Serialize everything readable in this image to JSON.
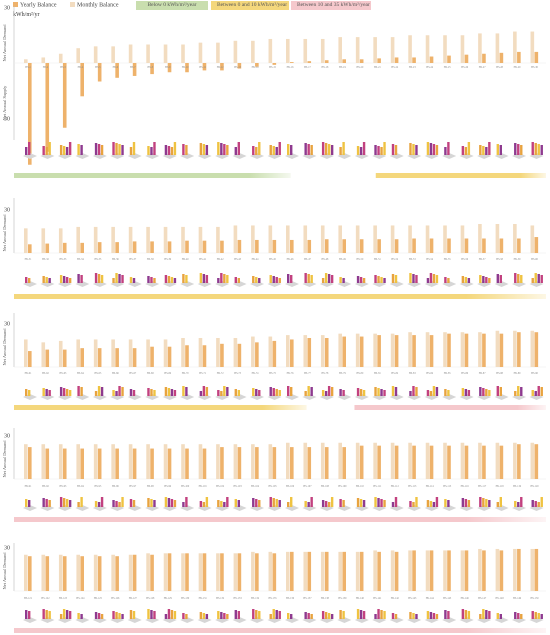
{
  "legend": {
    "yearly": "Yearly Balance",
    "monthly": "Monthly Balance",
    "band_green": "Below 0 kWh/m²/year",
    "band_yellow": "Between 0 and 10 kWh/m²/year",
    "band_pink": "Between 10 and 35 kWh/m²/year"
  },
  "unit": "kWh/m²/yr",
  "colors": {
    "yearly": "#eeb26b",
    "monthly": "#f2dcc0",
    "green": "#c9deae",
    "yellow": "#f4d77c",
    "pink": "#f5c8cc",
    "axis": "#bbbbbb",
    "grid": "#eeeeee",
    "block_purple": "#8e3a8f",
    "block_magenta": "#c2417f",
    "block_orange": "#e8a33f",
    "block_yellow": "#efc341",
    "base": "#d6d6d6"
  },
  "chart_data": [
    {
      "type": "bar",
      "title": "",
      "ylabel_top": "Net Annual Demand",
      "ylabel_bottom": "Net Annual Supply",
      "yticks": [
        30,
        30
      ],
      "ylim": [
        -60,
        30
      ],
      "categories": [
        "HS-1",
        "HS-2",
        "HS-3",
        "HS-4",
        "HS-5",
        "HS-6",
        "HS-7",
        "HS-8",
        "HS-9",
        "HS-10",
        "HS-11",
        "HS-12",
        "HS-13",
        "HS-14",
        "HS-15",
        "HS-16",
        "HS-17",
        "HS-18",
        "HS-19",
        "HS-20",
        "HS-21",
        "HS-22",
        "HS-23",
        "HS-24",
        "HS-25",
        "HS-26",
        "HS-27",
        "HS-28",
        "HS-29",
        "HS-30"
      ],
      "series": [
        {
          "name": "Yearly Balance",
          "values": [
            -55,
            -48,
            -35,
            -18,
            -10,
            -8,
            -7,
            -6,
            -5,
            -5,
            -4,
            -4,
            -3,
            -2,
            -1,
            0.5,
            1,
            1.5,
            2,
            2,
            2.5,
            3,
            3,
            3.5,
            4,
            4.5,
            5,
            5.5,
            6,
            6
          ]
        },
        {
          "name": "Monthly Balance",
          "values": [
            2,
            3,
            5,
            8,
            9,
            9,
            10,
            10,
            10,
            10,
            11,
            11,
            12,
            12,
            13,
            13,
            13,
            13,
            14,
            14,
            14,
            14,
            15,
            15,
            15,
            15,
            16,
            16,
            17,
            17
          ]
        }
      ],
      "bands": [
        {
          "color": "green",
          "from": 0,
          "to": 0.52
        },
        {
          "color": "yellow",
          "from": 0.68,
          "to": 1.0
        }
      ]
    },
    {
      "type": "bar",
      "title": "",
      "ylabel_top": "Net Annual Demand",
      "yticks": [
        30
      ],
      "ylim": [
        0,
        35
      ],
      "categories": [
        "HS-31",
        "HS-32",
        "HS-33",
        "HS-34",
        "HS-35",
        "HS-36",
        "HS-37",
        "HS-38",
        "HS-39",
        "HS-40",
        "HS-41",
        "HS-42",
        "HS-43",
        "HS-44",
        "HS-45",
        "HS-46",
        "HS-47",
        "HS-48",
        "HS-49",
        "HS-50",
        "HS-51",
        "HS-52",
        "HS-53",
        "HS-54",
        "HS-55",
        "HS-56",
        "HS-57",
        "HS-58",
        "HS-59",
        "HS-60"
      ],
      "series": [
        {
          "name": "Yearly Balance",
          "values": [
            6,
            6.5,
            7,
            7,
            7.5,
            7.5,
            8,
            8,
            8,
            8.5,
            8.5,
            8.5,
            9,
            9,
            9,
            9,
            9,
            9.5,
            9.5,
            9.5,
            9.5,
            9.5,
            10,
            10,
            10,
            10,
            10,
            10,
            10,
            11
          ]
        },
        {
          "name": "Monthly Balance",
          "values": [
            17,
            17,
            17,
            18,
            18,
            18,
            18,
            18,
            18,
            18,
            18,
            18,
            19,
            19,
            19,
            19,
            19,
            19,
            19,
            19,
            19,
            19,
            19,
            19,
            19,
            19,
            20,
            20,
            20,
            19
          ]
        }
      ],
      "bands": [
        {
          "color": "yellow",
          "from": 0,
          "to": 1.0
        }
      ]
    },
    {
      "type": "bar",
      "title": "",
      "ylabel_top": "Net Annual Demand",
      "yticks": [
        30
      ],
      "ylim": [
        0,
        35
      ],
      "categories": [
        "HS-61",
        "HS-62",
        "HS-63",
        "HS-64",
        "HS-65",
        "HS-66",
        "HS-67",
        "HS-68",
        "HS-69",
        "HS-70",
        "HS-71",
        "HS-72",
        "HS-73",
        "HS-74",
        "HS-75",
        "HS-76",
        "HS-77",
        "HS-78",
        "HS-79",
        "HS-80",
        "HS-81",
        "HS-82",
        "HS-83",
        "HS-84",
        "HS-85",
        "HS-86",
        "HS-87",
        "HS-88",
        "HS-89",
        "HS-90"
      ],
      "series": [
        {
          "name": "Yearly Balance",
          "values": [
            11,
            12,
            12,
            13,
            13,
            13,
            13,
            14,
            14,
            15,
            15,
            16,
            16,
            17,
            18,
            19,
            20,
            20,
            21,
            21,
            22,
            22,
            22,
            22,
            23,
            23,
            23,
            23,
            24,
            24
          ]
        },
        {
          "name": "Monthly Balance",
          "values": [
            19,
            17,
            18,
            19,
            19,
            19,
            19,
            19,
            19,
            20,
            20,
            20,
            20,
            21,
            21,
            22,
            22,
            22,
            23,
            23,
            23,
            23,
            24,
            24,
            24,
            24,
            24,
            25,
            25,
            25
          ]
        }
      ],
      "bands": [
        {
          "color": "yellow",
          "from": 0,
          "to": 0.55
        },
        {
          "color": "pink",
          "from": 0.64,
          "to": 1.0
        }
      ]
    },
    {
      "type": "bar",
      "title": "",
      "ylabel_top": "Net Annual Demand",
      "yticks": [
        30
      ],
      "ylim": [
        0,
        35
      ],
      "categories": [
        "HS-91",
        "HS-92",
        "HS-93",
        "HS-94",
        "HS-95",
        "HS-96",
        "HS-97",
        "HS-98",
        "HS-99",
        "HS-100",
        "HS-101",
        "HS-102",
        "HS-103",
        "HS-104",
        "HS-105",
        "HS-106",
        "HS-107",
        "HS-108",
        "HS-109",
        "HS-110",
        "HS-111",
        "HS-112",
        "HS-113",
        "HS-114",
        "HS-115",
        "HS-116",
        "HS-117",
        "HS-118",
        "HS-119",
        "HS-120"
      ],
      "series": [
        {
          "name": "Yearly Balance",
          "values": [
            22,
            21,
            21,
            21,
            21,
            21,
            21,
            21,
            21,
            21,
            21,
            22,
            22,
            22,
            22,
            22,
            22,
            22,
            22,
            23,
            23,
            23,
            23,
            23,
            23,
            23,
            23,
            23,
            24,
            24
          ]
        },
        {
          "name": "Monthly Balance",
          "values": [
            24,
            24,
            24,
            24,
            24,
            24,
            24,
            24,
            24,
            24,
            24,
            24,
            24,
            24,
            24,
            25,
            25,
            25,
            25,
            25,
            25,
            25,
            25,
            25,
            25,
            25,
            25,
            25,
            25,
            25
          ]
        }
      ],
      "bands": [
        {
          "color": "pink",
          "from": 0,
          "to": 1.0
        }
      ]
    },
    {
      "type": "bar",
      "title": "",
      "ylabel_top": "Net Annual Demand",
      "yticks": [
        30
      ],
      "ylim": [
        0,
        35
      ],
      "categories": [
        "HS-121",
        "HS-122",
        "HS-123",
        "HS-124",
        "HS-125",
        "HS-126",
        "HS-127",
        "HS-128",
        "HS-129",
        "HS-130",
        "HS-131",
        "HS-132",
        "HS-133",
        "HS-134",
        "HS-135",
        "HS-136",
        "HS-137",
        "HS-138",
        "HS-139",
        "HS-140",
        "HS-141",
        "HS-142",
        "HS-143",
        "HS-144",
        "HS-145",
        "HS-146",
        "HS-147",
        "HS-148",
        "HS-149",
        "HS-150"
      ],
      "series": [
        {
          "name": "Yearly Balance",
          "values": [
            24,
            24,
            24,
            24,
            24,
            24,
            25,
            25,
            26,
            26,
            26,
            26,
            26,
            26,
            26,
            27,
            27,
            27,
            27,
            27,
            27,
            27,
            28,
            28,
            28,
            28,
            28,
            28,
            29,
            29
          ]
        },
        {
          "name": "Monthly Balance",
          "values": [
            25,
            25,
            25,
            25,
            25,
            25,
            25,
            26,
            26,
            26,
            26,
            26,
            26,
            27,
            27,
            27,
            27,
            27,
            27,
            27,
            28,
            28,
            28,
            28,
            28,
            28,
            29,
            29,
            29,
            29
          ]
        }
      ],
      "bands": [
        {
          "color": "pink",
          "from": 0,
          "to": 1.0
        }
      ]
    }
  ]
}
